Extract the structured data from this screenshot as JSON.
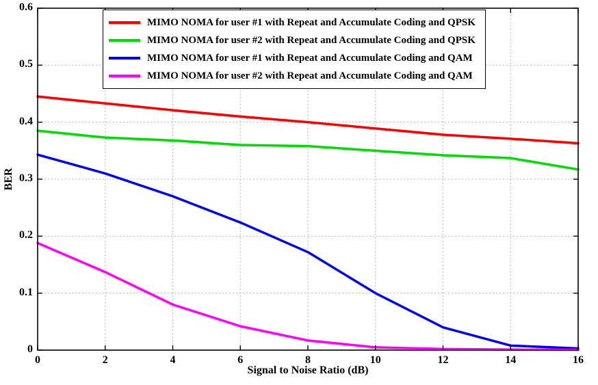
{
  "chart_data": {
    "type": "line",
    "x": [
      0,
      2,
      4,
      6,
      8,
      10,
      12,
      14,
      16
    ],
    "series": [
      {
        "name": "MIMO NOMA for user #1 with Repeat and Accumulate Coding and QPSK",
        "color": "#ff0000",
        "values": [
          0.445,
          0.433,
          0.421,
          0.41,
          0.4,
          0.389,
          0.378,
          0.371,
          0.363
        ]
      },
      {
        "name": "MIMO NOMA for user #2 with Repeat and Accumulate Coding and QPSK",
        "color": "#00dd00",
        "values": [
          0.385,
          0.373,
          0.368,
          0.36,
          0.358,
          0.35,
          0.342,
          0.337,
          0.317
        ]
      },
      {
        "name": "MIMO NOMA for user #1 with Repeat and Accumulate Coding and QAM",
        "color": "#0000ff",
        "values": [
          0.343,
          0.31,
          0.27,
          0.224,
          0.172,
          0.1,
          0.04,
          0.008,
          0.003
        ]
      },
      {
        "name": "MIMO NOMA for user #2 with Repeat and Accumulate Coding and QAM",
        "color": "#ff00ff",
        "values": [
          0.188,
          0.137,
          0.08,
          0.042,
          0.017,
          0.005,
          0.002,
          0.001,
          0.0005
        ]
      }
    ],
    "title": "",
    "xlabel": "Signal to Noise Ratio (dB)",
    "ylabel": "BER",
    "xlim": [
      0,
      16
    ],
    "ylim": [
      0,
      0.6
    ],
    "xticks": [
      0,
      2,
      4,
      6,
      8,
      10,
      12,
      14,
      16
    ],
    "yticks": [
      0,
      0.1,
      0.2,
      0.3,
      0.4,
      0.5,
      0.6
    ],
    "grid": true,
    "grid_style": "dashed",
    "grid_color": "#b5b5b5",
    "axis_color": "#000000",
    "legend_position": "top-inside",
    "line_width": 3.5
  }
}
